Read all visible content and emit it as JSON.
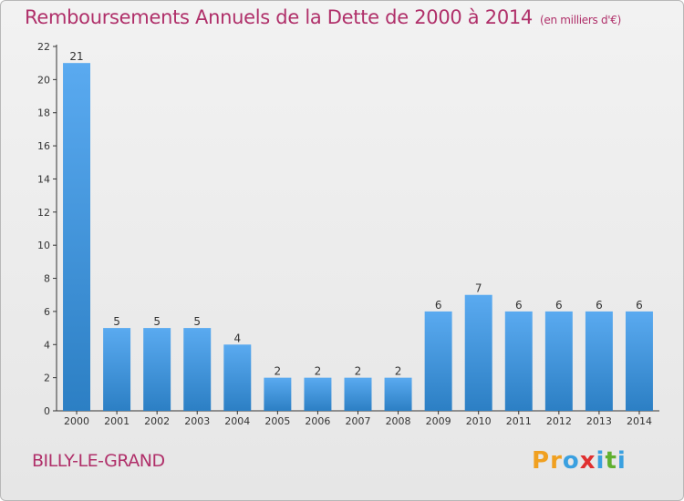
{
  "header": {
    "title": "Remboursements Annuels de la Dette de 2000 à 2014",
    "unit_note": "(en milliers d'€)"
  },
  "footer": {
    "commune": "BILLY-LE-GRAND",
    "logo_letters": [
      "P",
      "r",
      "o",
      "x",
      "i",
      "t",
      "i"
    ],
    "logo_colors": [
      "#f0a020",
      "#f0a020",
      "#3aa0e0",
      "#e03030",
      "#3aa0e0",
      "#60b030",
      "#3aa0e0"
    ]
  },
  "colors": {
    "title": "#b0306a",
    "bar_light": "#5aaaf0",
    "bar_dark": "#2c7fc4",
    "axis": "#333333",
    "grid": "#c8c8c8"
  },
  "chart_data": {
    "type": "bar",
    "title": "Remboursements Annuels de la Dette de 2000 à 2014",
    "xlabel": "",
    "ylabel": "",
    "categories": [
      "2000",
      "2001",
      "2002",
      "2003",
      "2004",
      "2005",
      "2006",
      "2007",
      "2008",
      "2009",
      "2010",
      "2011",
      "2012",
      "2013",
      "2014"
    ],
    "values": [
      21,
      5,
      5,
      5,
      4,
      2,
      2,
      2,
      2,
      6,
      7,
      6,
      6,
      6,
      6
    ],
    "data_labels": [
      "21",
      "5",
      "5",
      "5",
      "4",
      "2",
      "2",
      "2",
      "2",
      "6",
      "7",
      "6",
      "6",
      "6",
      "6"
    ],
    "ylim": [
      0,
      22
    ],
    "yticks": [
      0,
      2,
      4,
      6,
      8,
      10,
      12,
      14,
      16,
      18,
      20,
      22
    ],
    "grid": false,
    "legend": "none"
  }
}
